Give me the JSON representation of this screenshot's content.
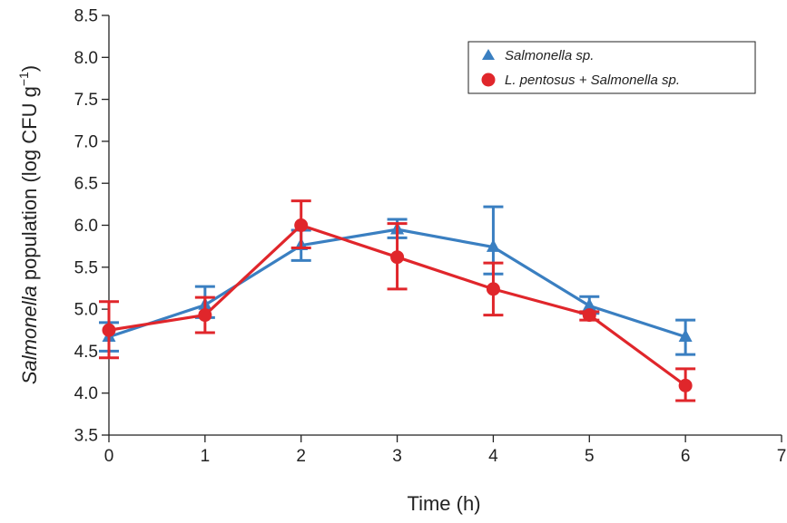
{
  "chart_data": {
    "type": "line",
    "xlabel": "Time (h)",
    "ylabel_italic": "Salmonella",
    "ylabel_rest": " population (log CFU g",
    "ylabel_sup": "−1",
    "ylabel_close": ")",
    "xlim": [
      0,
      7
    ],
    "ylim": [
      3.5,
      8.5
    ],
    "x_ticks": [
      "0",
      "1",
      "2",
      "3",
      "4",
      "5",
      "6",
      "7"
    ],
    "y_ticks": [
      "3.5",
      "4.0",
      "4.5",
      "5.0",
      "5.5",
      "6.0",
      "6.5",
      "7.0",
      "7.5",
      "8.0",
      "8.5"
    ],
    "grid": false,
    "legend_position": "top-right",
    "x": [
      0,
      1,
      2,
      3,
      4,
      5,
      6
    ],
    "series": [
      {
        "name": "Salmonella sp.",
        "marker": "triangle",
        "color": "#3a7fc1",
        "values": [
          4.67,
          5.05,
          5.76,
          5.95,
          5.74,
          5.04,
          4.67
        ],
        "err_low": [
          0.17,
          0.15,
          0.18,
          0.1,
          0.32,
          0.09,
          0.21
        ],
        "err_high": [
          0.17,
          0.22,
          0.18,
          0.12,
          0.48,
          0.11,
          0.2
        ]
      },
      {
        "name": "L. pentosus + Salmonella sp.",
        "marker": "circle",
        "color": "#e0262b",
        "values": [
          4.75,
          4.93,
          6.0,
          5.62,
          5.24,
          4.93,
          4.09
        ],
        "err_low": [
          0.33,
          0.21,
          0.27,
          0.38,
          0.31,
          0.06,
          0.18
        ],
        "err_high": [
          0.34,
          0.21,
          0.29,
          0.4,
          0.31,
          0.04,
          0.2
        ]
      }
    ]
  }
}
